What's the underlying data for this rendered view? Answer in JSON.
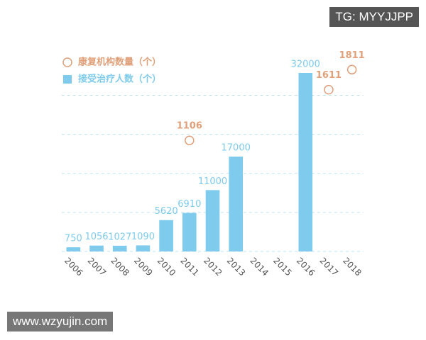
{
  "chart_data": {
    "type": "bar",
    "categories": [
      "2006",
      "2007",
      "2008",
      "2009",
      "2010",
      "2011",
      "2012",
      "2013",
      "2014",
      "2015",
      "2016",
      "2017",
      "2018"
    ],
    "series": [
      {
        "name": "康复机构数量（个）",
        "type": "scatter",
        "axis": "y2",
        "color": "#e0a07a",
        "values": [
          null,
          null,
          null,
          null,
          null,
          1106,
          null,
          null,
          null,
          null,
          null,
          1611,
          1811
        ]
      },
      {
        "name": "接受治疗人数（个）",
        "type": "bar",
        "color": "#7ecbed",
        "values": [
          750,
          1056,
          1027,
          1090,
          5620,
          6910,
          11000,
          17000,
          null,
          null,
          32000,
          null,
          null
        ]
      }
    ],
    "ylim": [
      0,
      36000
    ],
    "yticks": [
      0,
      7000,
      14000,
      21000,
      28000
    ],
    "y2lim": [
      0,
      2000
    ],
    "grid": true
  },
  "watermarks": [
    "TG: MYYJJPP",
    "www.wzyujin.com"
  ]
}
